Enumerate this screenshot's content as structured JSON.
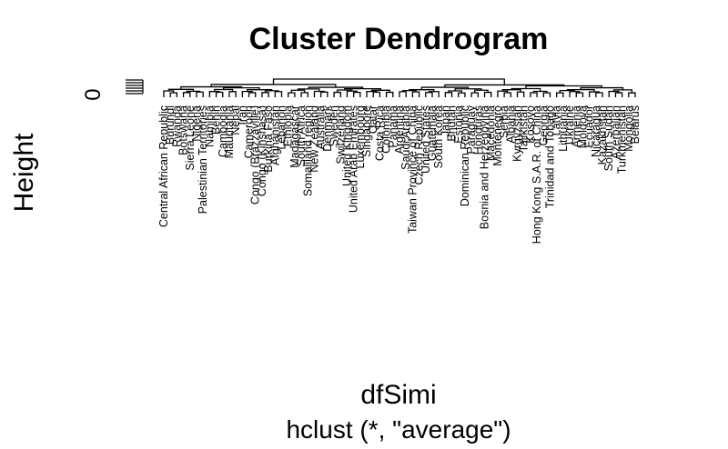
{
  "chart_data": {
    "type": "dendrogram",
    "title": "Cluster Dendrogram",
    "xlabel": "dfSimi",
    "sub": "hclust (*, \"average\")",
    "ylabel": "Height",
    "y_ticks": [
      "0"
    ],
    "method": "average",
    "leaves": [
      "Central African Republic",
      "Burundi",
      "Rwanda",
      "Botswana",
      "Sierra Leone",
      "Nigeria",
      "Palestinian Territories",
      "Namibia",
      "Benin",
      "Cambodia",
      "Mauritania",
      "Nepal",
      "Iran",
      "Cameroon",
      "Congo (Brazzaville)",
      "Congo (Kinshasa)",
      "Burkina Faso",
      "Afghanistan",
      "Lebanon",
      "Ethiopia",
      "Madagascar",
      "South Africa",
      "Somaliland region",
      "New Zealand",
      "Australia",
      "Denmark",
      "Sweden",
      "Switzerland",
      "United Kingdom",
      "United Arab Emirates",
      "Luxembourg",
      "Singapore",
      "Qatar",
      "Costa Rica",
      "Colombia",
      "Panama",
      "Argentina",
      "Saudi Arabia",
      "Taiwan Province of China",
      "Czech Republic",
      "United States",
      "Guatemala",
      "South Korea",
      "Japan",
      "Bhutan",
      "Estonia",
      "Dominican Republic",
      "Paraguay",
      "Honduras",
      "Bosnia and Herzegovina",
      "Macedonia",
      "Montenegro",
      "Serbia",
      "Albania",
      "Kyrgyzstan",
      "Tajikistan",
      "Kosovo",
      "Hong Kong S.A.R. of China",
      "Georgia",
      "Trinidad and Tobago",
      "Latvia",
      "Lithuania",
      "Ukraine",
      "Armenia",
      "Moldova",
      "Ecuador",
      "Nicaragua",
      "Kazakhstan",
      "South Sudan",
      "Azerbaijan",
      "Turkmenistan",
      "Mongolia",
      "Belarus"
    ]
  }
}
